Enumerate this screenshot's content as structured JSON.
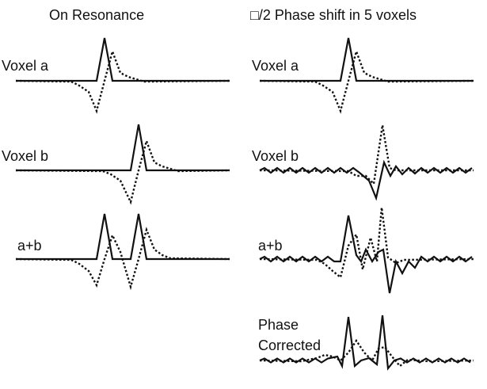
{
  "left": {
    "title": "On Resonance",
    "labels": [
      "Voxel a",
      "Voxel b",
      "a+b"
    ]
  },
  "right": {
    "title": "□/2 Phase shift in 5 voxels",
    "labels": [
      "Voxel a",
      "Voxel b",
      "a+b",
      "Phase Corrected"
    ]
  }
}
